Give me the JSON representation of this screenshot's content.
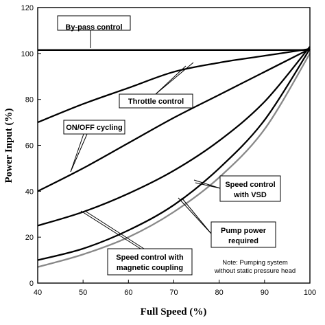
{
  "chart_data": {
    "type": "line",
    "xlabel": "Full Speed (%)",
    "ylabel": "Power Input (%)",
    "xlim": [
      40,
      100
    ],
    "ylim": [
      0,
      120
    ],
    "xticks": [
      40,
      50,
      60,
      70,
      80,
      90,
      100
    ],
    "yticks": [
      0,
      20,
      40,
      60,
      80,
      100,
      120
    ],
    "grid": false,
    "series": [
      {
        "name": "By-pass control",
        "color": "#000000",
        "x": [
          40,
          100
        ],
        "y": [
          101.5,
          101.5
        ]
      },
      {
        "name": "Throttle control",
        "color": "#000000",
        "x": [
          40,
          50,
          60,
          70,
          80,
          90,
          100
        ],
        "y": [
          70,
          78,
          85,
          92,
          96,
          99,
          102
        ]
      },
      {
        "name": "ON/OFF cycling",
        "color": "#000000",
        "x": [
          40,
          50,
          60,
          70,
          80,
          90,
          100
        ],
        "y": [
          40,
          50,
          61,
          72,
          82,
          92,
          102
        ]
      },
      {
        "name": "Speed control with magnetic coupling",
        "color": "#000000",
        "x": [
          40,
          50,
          60,
          70,
          80,
          90,
          100
        ],
        "y": [
          25,
          31,
          39,
          49,
          62,
          79,
          103
        ]
      },
      {
        "name": "Speed control with VSD",
        "color": "#000000",
        "x": [
          40,
          50,
          60,
          70,
          80,
          90,
          100
        ],
        "y": [
          10,
          15,
          23,
          34,
          50,
          71,
          102
        ]
      },
      {
        "name": "Pump power required",
        "color": "#888888",
        "x": [
          40,
          50,
          60,
          70,
          80,
          90,
          100
        ],
        "y": [
          7,
          12.5,
          20,
          31,
          46,
          67,
          100
        ]
      }
    ],
    "annotations": [
      {
        "text": "By-pass control"
      },
      {
        "text": "Throttle control"
      },
      {
        "text": "ON/OFF cycling"
      },
      {
        "text": "Speed control",
        "text2": "with VSD"
      },
      {
        "text": "Pump power",
        "text2": "required"
      },
      {
        "text": "Speed control with",
        "text2": "magnetic coupling"
      }
    ],
    "note": {
      "line1": "Note: Pumping system",
      "line2": "without static pressure head"
    }
  }
}
